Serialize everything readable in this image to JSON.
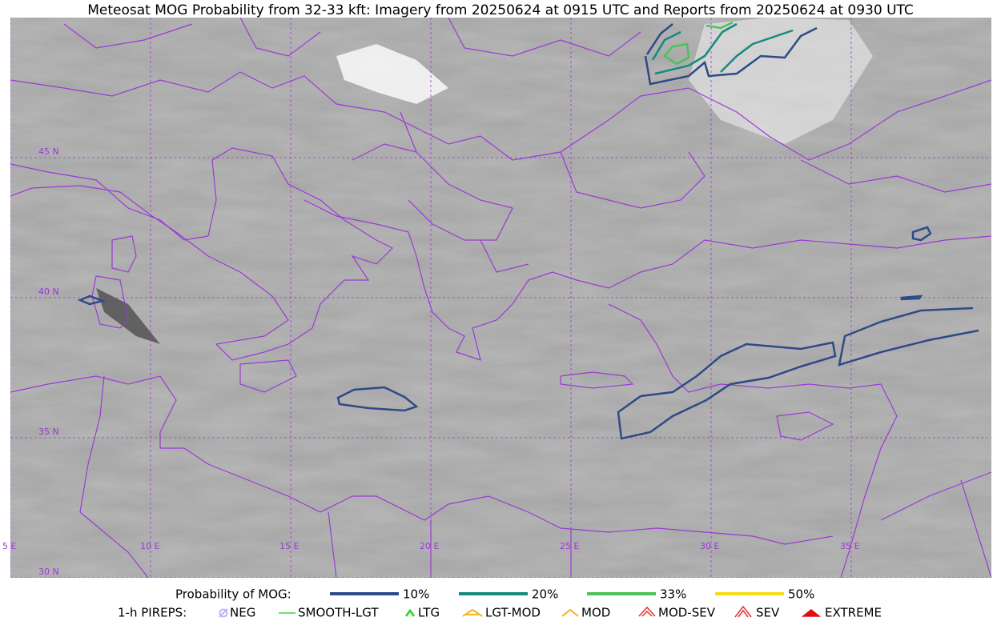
{
  "title": "Meteosat MOG Probability from 32-33 kft: Imagery from 20250624 at 0915 UTC and Reports from 20250624 at 0930 UTC",
  "map": {
    "lat_labels": [
      "45 N",
      "40 N",
      "35 N",
      "30 N"
    ],
    "lon_labels": [
      "5 E",
      "10 E",
      "15 E",
      "20 E",
      "25 E",
      "30 E",
      "35 E"
    ]
  },
  "legend": {
    "probability": {
      "label": "Probability of MOG:",
      "items": [
        {
          "label": "10%",
          "color": "#2e4a87"
        },
        {
          "label": "20%",
          "color": "#148a80"
        },
        {
          "label": "33%",
          "color": "#4cc258"
        },
        {
          "label": "50%",
          "color": "#f5dc14"
        }
      ]
    },
    "pireps": {
      "label": "1-h PIREPS:",
      "items": [
        "NEG",
        "SMOOTH-LGT",
        "LTG",
        "LGT-MOD",
        "MOD",
        "MOD-SEV",
        "SEV",
        "EXTREME"
      ]
    }
  }
}
